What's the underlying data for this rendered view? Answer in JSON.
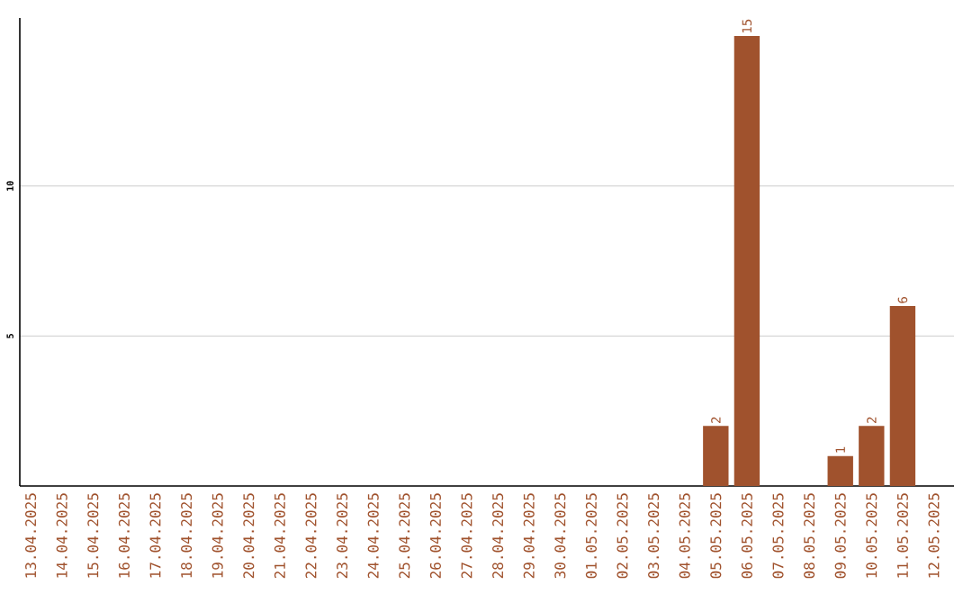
{
  "chart_data": {
    "type": "bar",
    "categories": [
      "13.04.2025",
      "14.04.2025",
      "15.04.2025",
      "16.04.2025",
      "17.04.2025",
      "18.04.2025",
      "19.04.2025",
      "20.04.2025",
      "21.04.2025",
      "22.04.2025",
      "23.04.2025",
      "24.04.2025",
      "25.04.2025",
      "26.04.2025",
      "27.04.2025",
      "28.04.2025",
      "29.04.2025",
      "30.04.2025",
      "01.05.2025",
      "02.05.2025",
      "03.05.2025",
      "04.05.2025",
      "05.05.2025",
      "06.05.2025",
      "07.05.2025",
      "08.05.2025",
      "09.05.2025",
      "10.05.2025",
      "11.05.2025",
      "12.05.2025"
    ],
    "values": [
      0,
      0,
      0,
      0,
      0,
      0,
      0,
      0,
      0,
      0,
      0,
      0,
      0,
      0,
      0,
      0,
      0,
      0,
      0,
      0,
      0,
      0,
      2,
      15,
      0,
      0,
      1,
      2,
      6,
      0
    ],
    "value_labels": [
      null,
      null,
      null,
      null,
      null,
      null,
      null,
      null,
      null,
      null,
      null,
      null,
      null,
      null,
      null,
      null,
      null,
      null,
      null,
      null,
      null,
      null,
      "2",
      "15",
      null,
      null,
      "1",
      "2",
      "6",
      null
    ],
    "color": "#a0522d",
    "ylim": [
      0,
      15.6
    ],
    "yticks": [
      5,
      10
    ],
    "grid": "y"
  }
}
